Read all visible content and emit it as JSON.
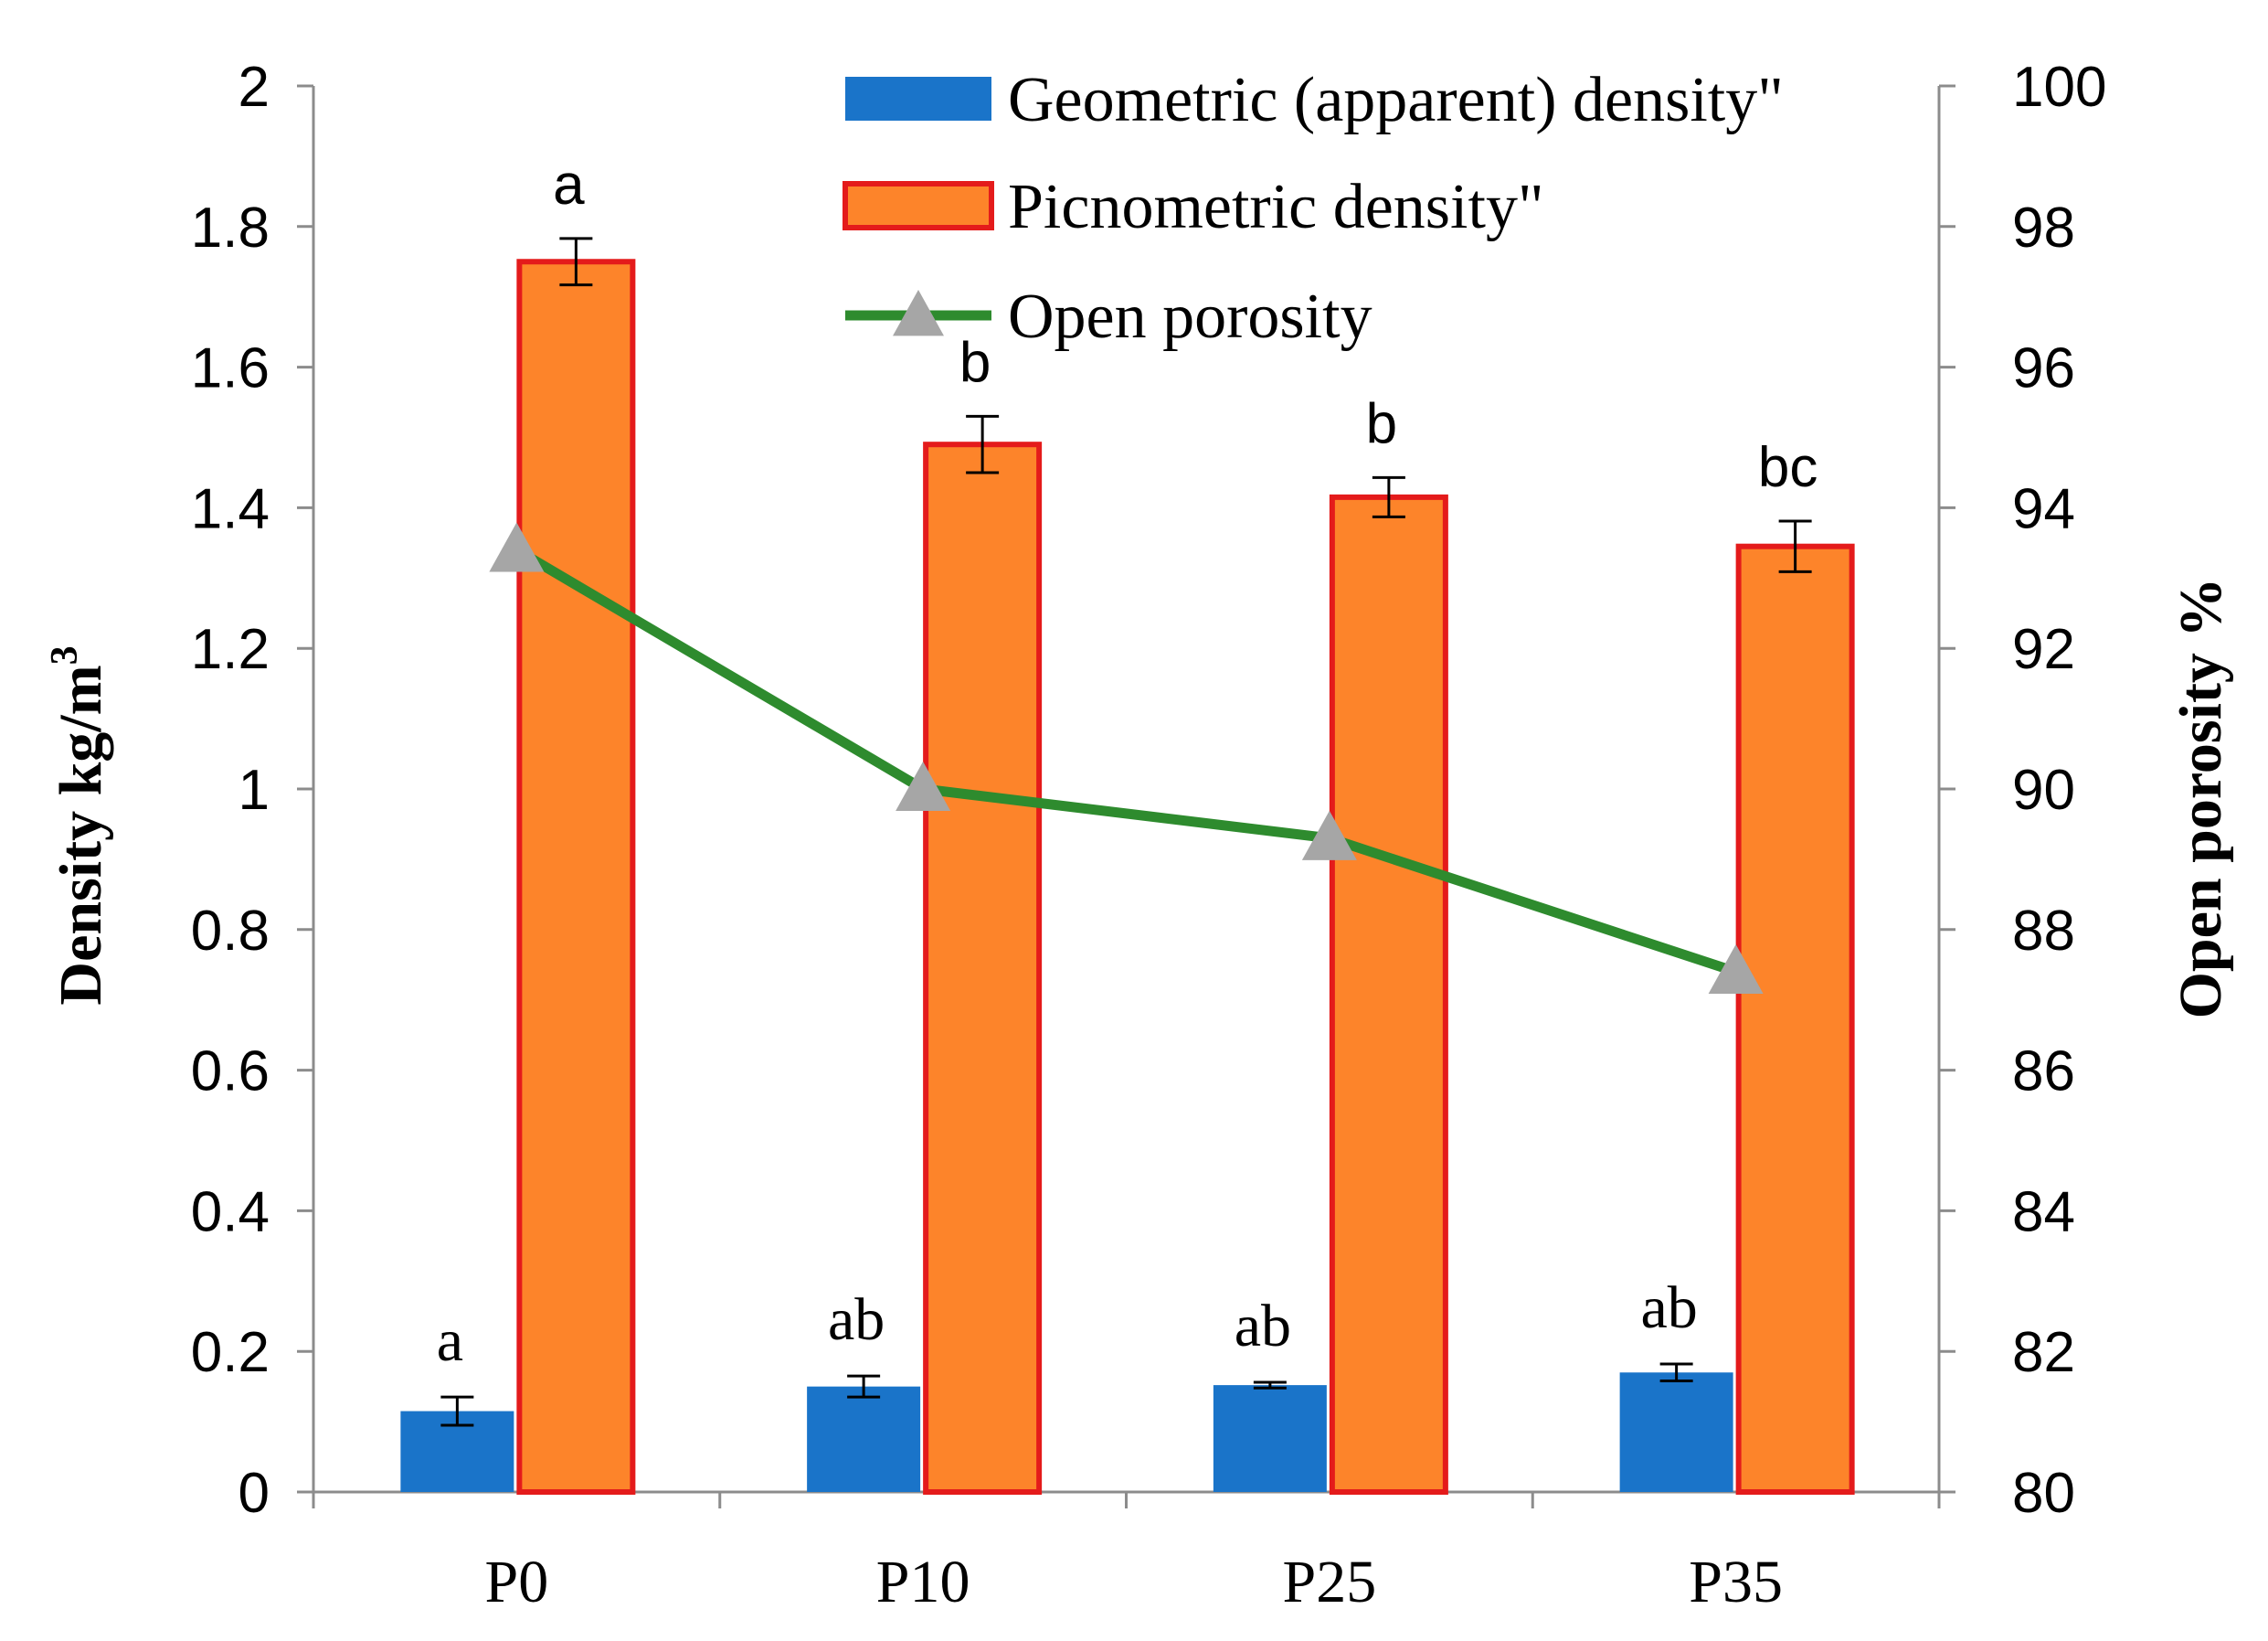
{
  "chart_data": {
    "type": "bar",
    "categories": [
      "P0",
      "P10",
      "P25",
      "P35"
    ],
    "series": [
      {
        "name": "Geometric (apparent) density\"",
        "kind": "bar",
        "axis": "left",
        "color": "#1a74c9",
        "values": [
          0.115,
          0.15,
          0.152,
          0.17
        ],
        "errors": [
          0.02,
          0.015,
          0.004,
          0.012
        ],
        "letters": [
          "a",
          "ab",
          "ab",
          "ab"
        ]
      },
      {
        "name": "Picnometric density\"",
        "kind": "bar",
        "axis": "left",
        "color": "#fd842a",
        "edge_color": "#e41b1b",
        "values": [
          1.75,
          1.49,
          1.415,
          1.345
        ],
        "errors": [
          0.033,
          0.04,
          0.028,
          0.036
        ],
        "letters": [
          "a",
          "b",
          "b",
          "bc"
        ]
      },
      {
        "name": "Open porosity",
        "kind": "line",
        "axis": "right",
        "color": "#2e8b2e",
        "marker_color": "#a6a6a6",
        "values": [
          93.4,
          90.0,
          89.3,
          87.4
        ]
      }
    ],
    "y_left": {
      "label": "Density kg/m",
      "label_superscript": "3",
      "ylim": [
        0,
        2
      ],
      "ticks": [
        "0",
        "0.2",
        "0.4",
        "0.6",
        "0.8",
        "1",
        "1.2",
        "1.4",
        "1.6",
        "1.8",
        "2"
      ]
    },
    "y_right": {
      "label": "Open porosity %",
      "ylim": [
        80,
        100
      ],
      "ticks": [
        "80",
        "82",
        "84",
        "86",
        "88",
        "90",
        "92",
        "94",
        "96",
        "98",
        "100"
      ]
    },
    "grid": false,
    "legend_position": "top-right"
  }
}
